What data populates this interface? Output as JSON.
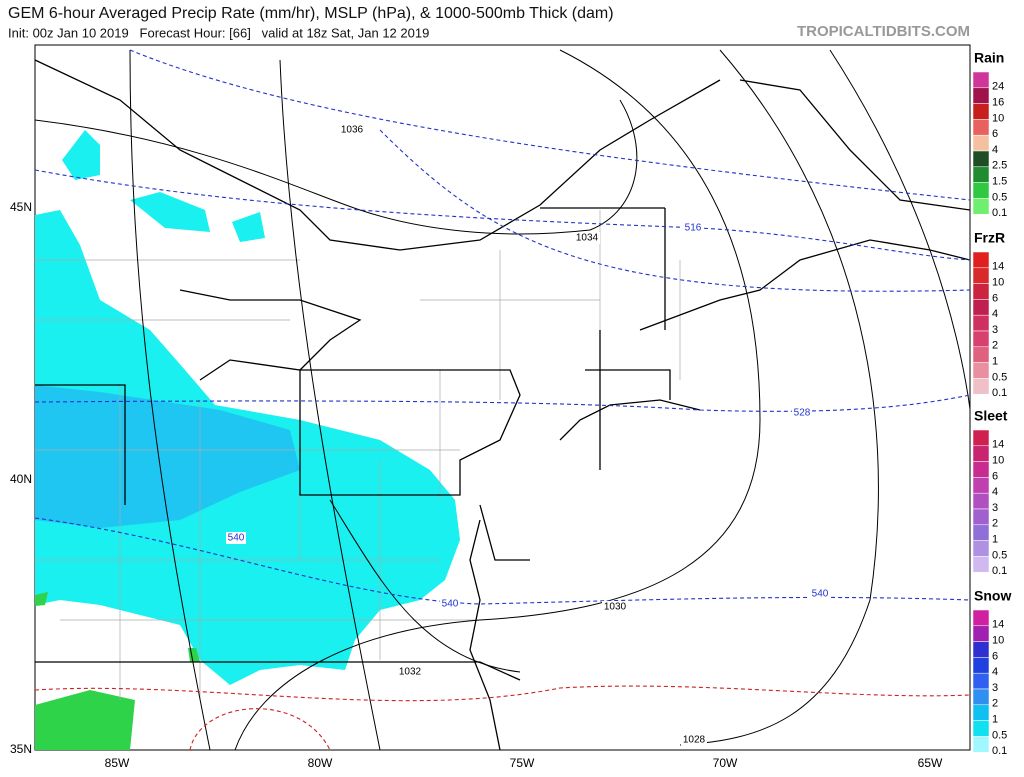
{
  "header": {
    "title": "GEM 6-hour Averaged Precip Rate (mm/hr), MSLP (hPa), & 1000-500mb Thick (dam)",
    "subtitle": "Init: 00z Jan 10 2019   Forecast Hour: [66]   valid at 18z Sat, Jan 12 2019",
    "credit": "TROPICALTIDBITS.COM"
  },
  "map": {
    "latitude_labels": [
      "45N",
      "40N",
      "35N"
    ],
    "longitude_labels": [
      "85W",
      "80W",
      "75W",
      "70W",
      "65W"
    ],
    "pressure_labels": [
      "1036",
      "1034",
      "1030",
      "1032",
      "1028"
    ],
    "thickness_labels": [
      "516",
      "528",
      "540",
      "540",
      "540"
    ]
  },
  "legend": [
    {
      "title": "Rain",
      "labels": [
        "24",
        "16",
        "10",
        "6",
        "4",
        "2.5",
        "1.5",
        "0.5",
        "0.1"
      ]
    },
    {
      "title": "FrzR",
      "labels": [
        "14",
        "10",
        "6",
        "4",
        "3",
        "2",
        "1",
        "0.5",
        "0.1"
      ]
    },
    {
      "title": "Sleet",
      "labels": [
        "14",
        "10",
        "6",
        "4",
        "3",
        "2",
        "1",
        "0.5",
        "0.1"
      ]
    },
    {
      "title": "Snow",
      "labels": [
        "14",
        "10",
        "6",
        "4",
        "3",
        "2",
        "1",
        "0.5",
        "0.1"
      ]
    }
  ]
}
